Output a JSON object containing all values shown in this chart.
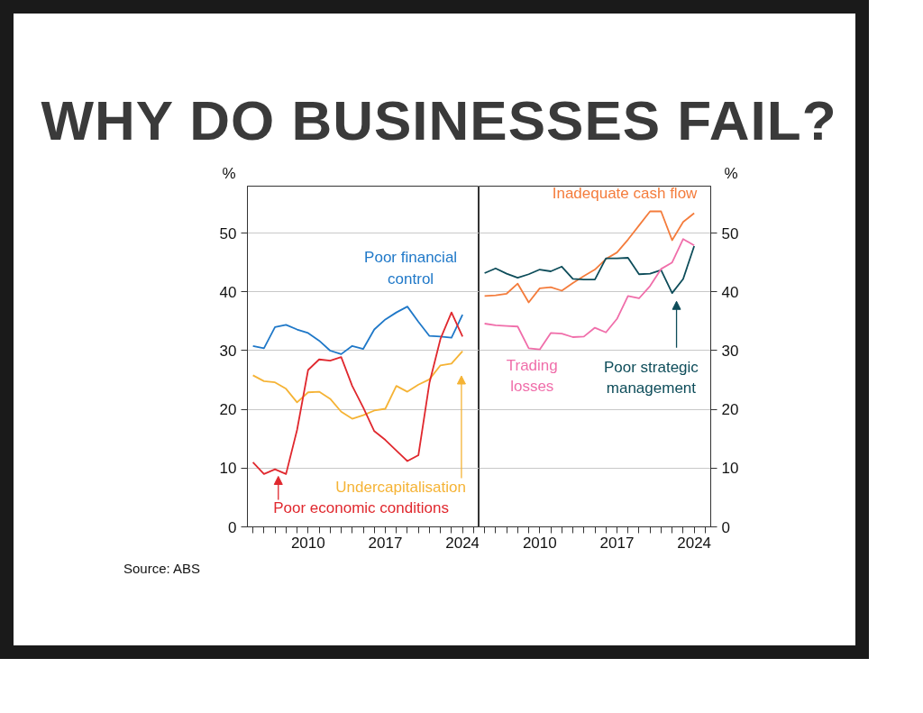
{
  "chart_data": [
    {
      "type": "line",
      "title": "WHY DO BUSINESSES FAIL?",
      "ylabel": "%",
      "annotations": [
        "Source: ABS"
      ],
      "grid": "y",
      "line_style": "solid",
      "x": [
        2005,
        2006,
        2007,
        2008,
        2009,
        2010,
        2011,
        2012,
        2013,
        2014,
        2015,
        2016,
        2017,
        2018,
        2019,
        2020,
        2021,
        2022,
        2023,
        2024
      ],
      "xlim": [
        2004.5,
        2025.5
      ],
      "xticks": [
        {
          "value": 2005,
          "label": null
        },
        {
          "value": 2006,
          "label": null
        },
        {
          "value": 2007,
          "label": null
        },
        {
          "value": 2008,
          "label": null
        },
        {
          "value": 2009,
          "label": null
        },
        2010,
        {
          "value": 2011,
          "label": null
        },
        {
          "value": 2012,
          "label": null
        },
        {
          "value": 2013,
          "label": null
        },
        {
          "value": 2014,
          "label": null
        },
        {
          "value": 2015,
          "label": null
        },
        {
          "value": 2016,
          "label": null
        },
        2017,
        {
          "value": 2018,
          "label": null
        },
        {
          "value": 2019,
          "label": null
        },
        {
          "value": 2020,
          "label": null
        },
        {
          "value": 2021,
          "label": null
        },
        {
          "value": 2022,
          "label": null
        },
        {
          "value": 2023,
          "label": null
        },
        2024,
        {
          "value": 2025,
          "label": null
        }
      ],
      "ylim": [
        0,
        58
      ],
      "yticks": [
        0,
        10,
        20,
        30,
        40,
        50
      ],
      "series": [
        {
          "name": "Poor financial control",
          "color": "#1f78c8",
          "values": [
            30.8,
            30.4,
            34,
            34.4,
            33.6,
            33,
            31.7,
            30,
            29.4,
            30.8,
            30.3,
            33.6,
            35.3,
            36.5,
            37.5,
            34.9,
            32.5,
            32.4,
            32.2,
            36.1
          ]
        },
        {
          "name": "Undercapitalisation",
          "color": "#f5b335",
          "values": [
            25.8,
            24.8,
            24.6,
            23.5,
            21.2,
            22.9,
            23,
            21.8,
            19.6,
            18.4,
            19,
            19.8,
            20.1,
            24,
            23,
            24.2,
            25.1,
            27.5,
            27.8,
            29.9
          ]
        },
        {
          "name": "Poor economic conditions",
          "color": "#e0282e",
          "values": [
            11,
            9,
            9.8,
            9,
            16.5,
            26.7,
            28.5,
            28.3,
            28.9,
            24,
            20.3,
            16.3,
            14.8,
            13,
            11.2,
            12.2,
            24.5,
            32,
            36.5,
            32.4
          ]
        }
      ]
    },
    {
      "type": "line",
      "y2label": "%",
      "grid": "y",
      "line_style": "solid",
      "x": [
        2005,
        2006,
        2007,
        2008,
        2009,
        2010,
        2011,
        2012,
        2013,
        2014,
        2015,
        2016,
        2017,
        2018,
        2019,
        2020,
        2021,
        2022,
        2023,
        2024
      ],
      "xlim": [
        2004.5,
        2025.5
      ],
      "xticks": [
        {
          "value": 2005,
          "label": null
        },
        {
          "value": 2006,
          "label": null
        },
        {
          "value": 2007,
          "label": null
        },
        {
          "value": 2008,
          "label": null
        },
        {
          "value": 2009,
          "label": null
        },
        2010,
        {
          "value": 2011,
          "label": null
        },
        {
          "value": 2012,
          "label": null
        },
        {
          "value": 2013,
          "label": null
        },
        {
          "value": 2014,
          "label": null
        },
        {
          "value": 2015,
          "label": null
        },
        {
          "value": 2016,
          "label": null
        },
        2017,
        {
          "value": 2018,
          "label": null
        },
        {
          "value": 2019,
          "label": null
        },
        {
          "value": 2020,
          "label": null
        },
        {
          "value": 2021,
          "label": null
        },
        {
          "value": 2022,
          "label": null
        },
        {
          "value": 2023,
          "label": null
        },
        2024,
        {
          "value": 2025,
          "label": null
        }
      ],
      "y2lim": [
        0,
        58
      ],
      "y2ticks": [
        0,
        10,
        20,
        30,
        40,
        50
      ],
      "series": [
        {
          "name": "Inadequate cash flow",
          "color": "#f47c3c",
          "axis": "y2",
          "values": [
            39.3,
            39.4,
            39.7,
            41.4,
            38.2,
            40.6,
            40.8,
            40.2,
            41.5,
            42.7,
            43.8,
            45.6,
            46.7,
            48.9,
            51.3,
            53.7,
            53.7,
            48.8,
            51.9,
            53.4
          ]
        },
        {
          "name": "Poor strategic management",
          "color": "#0e4d5a",
          "axis": "y2",
          "values": [
            43.2,
            44,
            43.1,
            42.4,
            43,
            43.8,
            43.5,
            44.3,
            42.2,
            42.1,
            42.1,
            45.7,
            45.7,
            45.8,
            43,
            43.1,
            43.7,
            39.8,
            42.2,
            47.8
          ]
        },
        {
          "name": "Trading losses",
          "color": "#f06eaa",
          "axis": "y2",
          "values": [
            34.6,
            34.3,
            34.2,
            34.1,
            30.4,
            30.2,
            33,
            32.9,
            32.3,
            32.4,
            33.9,
            33.1,
            35.4,
            39.3,
            38.9,
            41,
            43.9,
            45,
            49,
            47.9
          ]
        }
      ]
    }
  ]
}
